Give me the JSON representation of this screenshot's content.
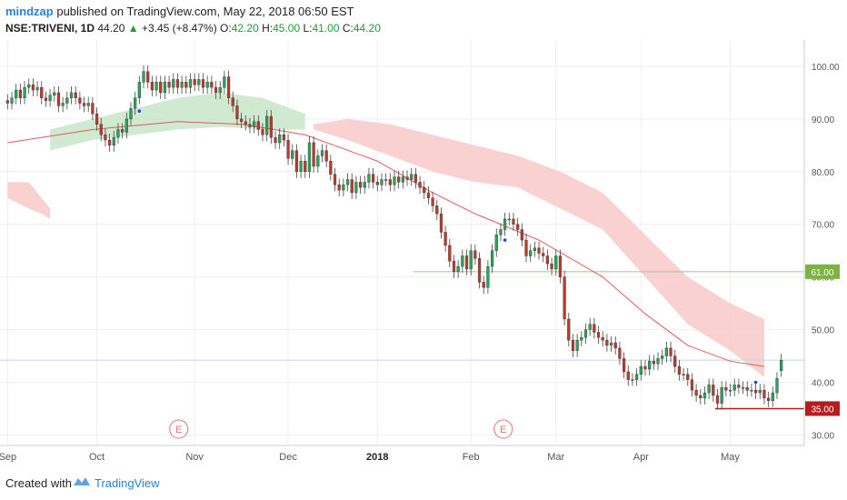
{
  "header": {
    "author": "mindzap",
    "published_text": " published on TradingView.com, May 22, 2018 06:50 EST",
    "symbol": "NSE:TRIVENI, 1D",
    "last": "44.20",
    "change_arrow": "▲",
    "change": "+3.45 (+8.47%)",
    "o_label": "O:",
    "o_value": "42.20",
    "h_label": "H:",
    "h_value": "45.00",
    "l_label": "L:",
    "l_value": "41.00",
    "c_label": "C:",
    "c_value": "44.20"
  },
  "footer": {
    "created_with": "Created with",
    "brand": "TradingView"
  },
  "colors": {
    "up": "#26a65b",
    "down": "#c0392b",
    "ma": "#e05a5a",
    "cloud_red": "#f9c9c9",
    "cloud_green": "#c8e6c9",
    "line_61": "#9cc59a",
    "line_35": "#b71c1c",
    "label_61": "#7cb342",
    "label_35": "#b71c1c",
    "grid": "#eeeeee",
    "axis_text": "#555555",
    "marker_blue": "#1e4fd8"
  },
  "chart_data": {
    "type": "candlestick",
    "yaxis": {
      "ticks": [
        "100.00",
        "90.00",
        "80.00",
        "70.00",
        "60.00",
        "50.00",
        "40.00",
        "30.00"
      ],
      "tick_values": [
        100,
        90,
        80,
        70,
        60,
        50,
        40,
        30
      ],
      "range": [
        28,
        105
      ]
    },
    "xaxis": {
      "ticks": [
        "Sep",
        "Oct",
        "Nov",
        "Dec",
        "2018",
        "Feb",
        "Mar",
        "Apr",
        "May"
      ]
    },
    "price_labels": {
      "resistance": "61.00",
      "support": "35.00",
      "last_price": 44.2
    },
    "levels": [
      {
        "label": "61.00",
        "value": 61.0,
        "start_month_index": 4.5
      },
      {
        "label": "35.00",
        "value": 35.0,
        "start_month_index": 7.85
      }
    ],
    "earnings_markers": [
      {
        "label": "E",
        "month_index": 1.9
      },
      {
        "label": "E",
        "month_index": 5.5
      }
    ],
    "month_starts": [
      0,
      21,
      44,
      66,
      87,
      109,
      129,
      149,
      170
    ],
    "close": [
      93,
      94,
      95.5,
      94,
      96,
      96.5,
      95.5,
      96,
      94,
      93.5,
      94.5,
      95,
      92.5,
      93,
      94,
      95,
      94,
      93,
      92.5,
      93,
      91,
      89,
      87,
      86,
      85,
      86.5,
      88,
      87.5,
      90,
      92,
      94,
      97,
      99,
      97,
      95.5,
      97,
      95,
      97,
      96,
      97.5,
      96,
      97,
      96,
      97.5,
      96.5,
      97.5,
      96,
      97,
      96,
      95,
      96,
      98,
      94,
      92.5,
      90,
      89.5,
      89,
      88.5,
      89.5,
      88,
      87,
      90.5,
      86.5,
      85.5,
      87,
      86,
      82.5,
      84,
      80,
      82,
      80,
      85.5,
      81,
      83,
      84,
      82,
      79.5,
      77.5,
      76.5,
      77.5,
      78.5,
      76,
      78,
      77,
      78,
      79.5,
      78,
      77.5,
      78.5,
      78.5,
      77.5,
      79,
      78,
      79,
      78.5,
      79.5,
      78,
      77,
      76,
      75,
      73.5,
      72,
      68.5,
      66,
      63,
      61,
      62,
      64,
      61.5,
      65,
      63.5,
      59,
      58,
      62,
      65,
      68,
      69,
      71,
      71,
      70,
      69,
      67,
      64,
      65,
      65.5,
      64.5,
      64,
      62.5,
      61.5,
      64,
      60,
      52,
      48,
      46,
      48,
      48.5,
      50,
      51,
      49.5,
      48.5,
      48,
      47,
      47.5,
      46.5,
      44.5,
      42,
      40.5,
      40.5,
      41.5,
      43,
      42.5,
      44,
      43.5,
      44.5,
      45,
      46.5,
      45,
      43,
      41.5,
      41.5,
      40.5,
      38.5,
      37.5,
      37,
      38,
      39.5,
      37.5,
      36,
      39,
      38.5,
      38.5,
      39.5,
      39,
      39,
      38.5,
      38.5,
      38,
      38.5,
      37,
      36.5,
      38,
      40.75,
      44.2
    ],
    "open": [
      93.5,
      93,
      94,
      95.5,
      94,
      96,
      96.5,
      95.5,
      96,
      94,
      93.5,
      94.5,
      95,
      92.5,
      93,
      94,
      95,
      94,
      93,
      92.5,
      93,
      91,
      89,
      87,
      86,
      85,
      86.5,
      88,
      87.5,
      90,
      92,
      94,
      97,
      99,
      97,
      95.5,
      97,
      95,
      97,
      96,
      97.5,
      96,
      97,
      96,
      97.5,
      96.5,
      97.5,
      96,
      97,
      96,
      95,
      96,
      98,
      94,
      92.5,
      90,
      89.5,
      89,
      88.5,
      89.5,
      88,
      87,
      90.5,
      86.5,
      85.5,
      87,
      86,
      82.5,
      84,
      80,
      82,
      80,
      85.5,
      81,
      83,
      84,
      82,
      79.5,
      77.5,
      76.5,
      77.5,
      78.5,
      76,
      78,
      77,
      78,
      79.5,
      78,
      77.5,
      78.5,
      78.5,
      77.5,
      79,
      78,
      79,
      78.5,
      79.5,
      78,
      77,
      76,
      75,
      73.5,
      72,
      68.5,
      66,
      63,
      61,
      62,
      64,
      61.5,
      65,
      63.5,
      59,
      58,
      62,
      65,
      68,
      69,
      71,
      71,
      70,
      69,
      67,
      64,
      65,
      65.5,
      64.5,
      64,
      62.5,
      61.5,
      64,
      60,
      52,
      48,
      46,
      48,
      48.5,
      50,
      51,
      49.5,
      48.5,
      48,
      47,
      47.5,
      46.5,
      44.5,
      42,
      40.5,
      40.5,
      41.5,
      43,
      42.5,
      44,
      43.5,
      44.5,
      45,
      46.5,
      45,
      43,
      41.5,
      41.5,
      40.5,
      38.5,
      37.5,
      37,
      38,
      39.5,
      37.5,
      36,
      39,
      38.5,
      38.5,
      39.5,
      39,
      39,
      38.5,
      38.5,
      38,
      38.5,
      37,
      36.5,
      38,
      42.2
    ],
    "moving_average": {
      "color": "#e05a5a",
      "points": [
        [
          0,
          85.5
        ],
        [
          20,
          88
        ],
        [
          40,
          89.5
        ],
        [
          55,
          89
        ],
        [
          70,
          87
        ],
        [
          87,
          82
        ],
        [
          100,
          76
        ],
        [
          110,
          72
        ],
        [
          125,
          67
        ],
        [
          140,
          60
        ],
        [
          150,
          53
        ],
        [
          160,
          47
        ],
        [
          170,
          44
        ],
        [
          178,
          43
        ]
      ]
    },
    "cloud_red": {
      "upper": [
        [
          0,
          78
        ],
        [
          5,
          78
        ],
        [
          8,
          75
        ],
        [
          10,
          73
        ]
      ],
      "lower": [
        [
          0,
          75
        ],
        [
          5,
          73
        ],
        [
          8,
          72
        ],
        [
          10,
          71
        ]
      ]
    },
    "cloud_red_2": {
      "upper": [
        [
          72,
          89
        ],
        [
          80,
          90
        ],
        [
          90,
          89
        ],
        [
          100,
          87
        ],
        [
          110,
          85
        ],
        [
          120,
          83
        ],
        [
          130,
          80
        ],
        [
          140,
          76
        ],
        [
          150,
          68
        ],
        [
          160,
          60
        ],
        [
          170,
          55
        ],
        [
          178,
          52
        ]
      ],
      "lower": [
        [
          72,
          88
        ],
        [
          80,
          86
        ],
        [
          90,
          83
        ],
        [
          100,
          80
        ],
        [
          110,
          78
        ],
        [
          120,
          77
        ],
        [
          130,
          73
        ],
        [
          140,
          69
        ],
        [
          150,
          60
        ],
        [
          160,
          51
        ],
        [
          170,
          46
        ],
        [
          178,
          41
        ]
      ]
    },
    "cloud_green": {
      "upper": [
        [
          10,
          88
        ],
        [
          20,
          90
        ],
        [
          30,
          92
        ],
        [
          40,
          94
        ],
        [
          50,
          95
        ],
        [
          60,
          94
        ],
        [
          70,
          91
        ]
      ],
      "lower": [
        [
          10,
          84
        ],
        [
          20,
          86
        ],
        [
          30,
          87
        ],
        [
          40,
          88
        ],
        [
          50,
          88.5
        ],
        [
          60,
          88
        ],
        [
          70,
          88
        ]
      ]
    },
    "signal_markers": [
      {
        "index": 31,
        "value": 91.5
      },
      {
        "index": 117,
        "value": 67
      },
      {
        "index": 176,
        "value": 40
      }
    ]
  }
}
